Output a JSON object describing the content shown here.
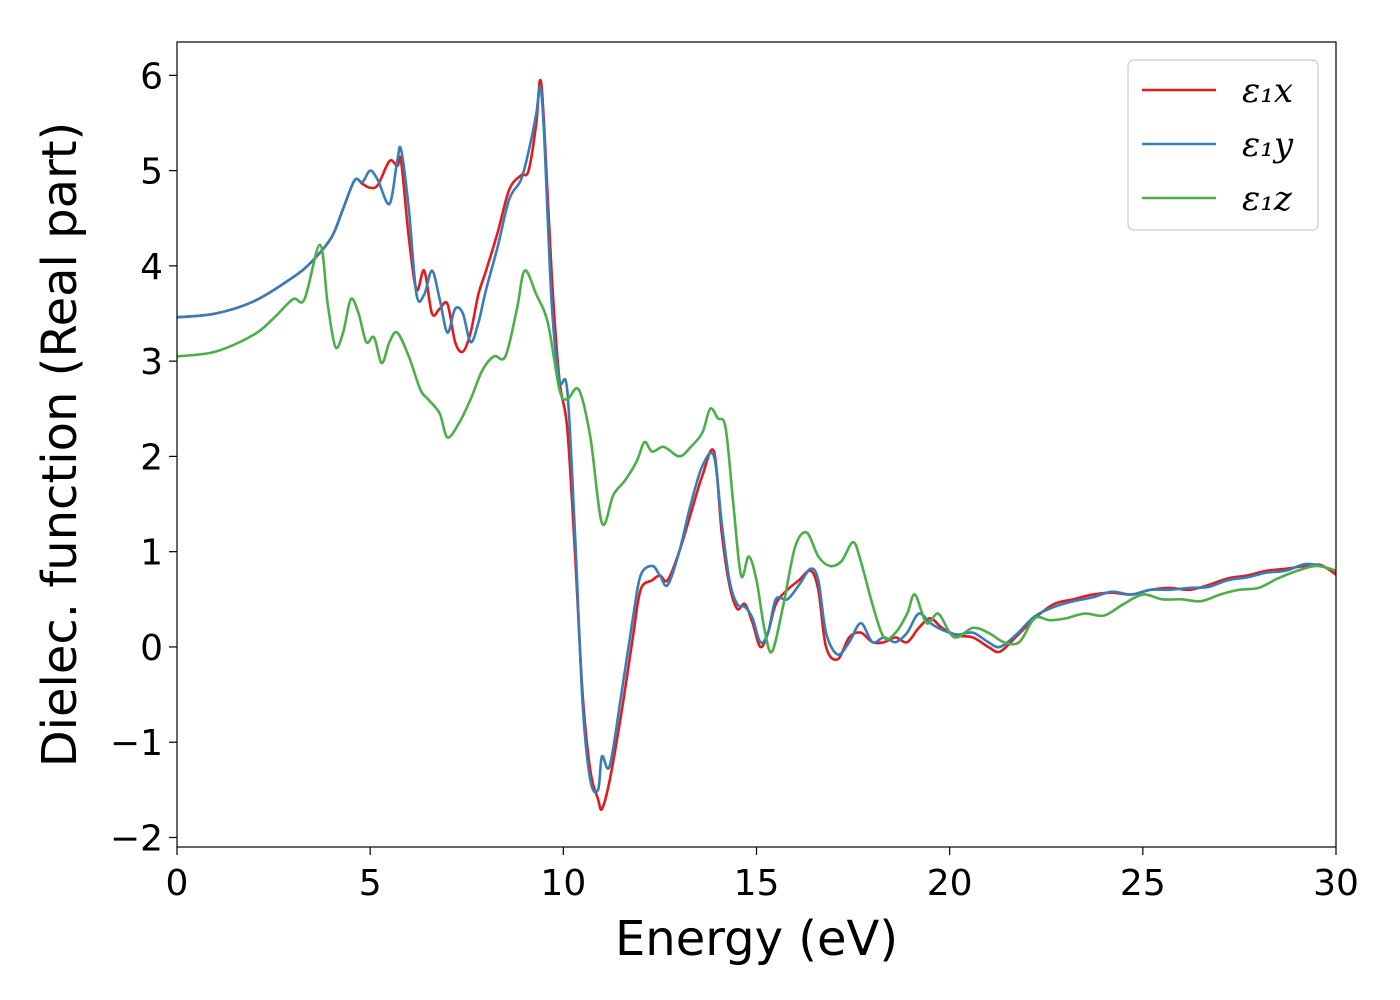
{
  "chart_data": {
    "type": "line",
    "title": "",
    "xlabel": "Energy (eV)",
    "ylabel": "Dielec. function (Real part)",
    "xlim": [
      0,
      30
    ],
    "ylim": [
      -2.1,
      6.35
    ],
    "xticks": [
      0,
      5,
      10,
      15,
      20,
      25,
      30
    ],
    "xtick_labels": [
      "0",
      "5",
      "10",
      "15",
      "20",
      "25",
      "30"
    ],
    "yticks": [
      -2,
      -1,
      0,
      1,
      2,
      3,
      4,
      5,
      6
    ],
    "ytick_labels": [
      "−2",
      "−1",
      "0",
      "1",
      "2",
      "3",
      "4",
      "5",
      "6"
    ],
    "grid": false,
    "legend_position": "top-right",
    "series": [
      {
        "name": "ε₁x",
        "color": "#e41a1c",
        "x": [
          0,
          1,
          2,
          3,
          3.5,
          4,
          4.3,
          4.6,
          4.8,
          5.0,
          5.2,
          5.5,
          5.7,
          5.8,
          6.0,
          6.2,
          6.4,
          6.6,
          6.8,
          7.0,
          7.2,
          7.4,
          7.6,
          7.8,
          8.0,
          8.3,
          8.6,
          8.9,
          9.1,
          9.3,
          9.4,
          9.5,
          9.7,
          9.9,
          10.1,
          10.3,
          10.5,
          10.7,
          10.9,
          11.0,
          11.2,
          11.5,
          11.8,
          12.0,
          12.3,
          12.5,
          12.7,
          13.0,
          13.3,
          13.6,
          13.9,
          14.1,
          14.3,
          14.5,
          14.7,
          14.9,
          15.1,
          15.3,
          15.5,
          15.8,
          16.1,
          16.4,
          16.6,
          16.8,
          17.1,
          17.4,
          17.7,
          18.0,
          18.3,
          18.6,
          18.9,
          19.2,
          19.5,
          19.8,
          20.2,
          20.6,
          21.0,
          21.3,
          21.7,
          22.2,
          22.7,
          23.2,
          23.7,
          24.2,
          24.7,
          25.2,
          25.7,
          26.2,
          26.7,
          27.2,
          27.7,
          28.2,
          28.7,
          29.2,
          29.6,
          30.0
        ],
        "y": [
          3.46,
          3.5,
          3.63,
          3.88,
          4.05,
          4.3,
          4.6,
          4.9,
          4.86,
          4.82,
          4.85,
          5.1,
          5.05,
          5.1,
          4.3,
          3.75,
          3.95,
          3.5,
          3.55,
          3.6,
          3.2,
          3.1,
          3.3,
          3.7,
          3.95,
          4.35,
          4.8,
          4.95,
          5.0,
          5.5,
          5.95,
          5.5,
          3.9,
          2.8,
          2.3,
          1.0,
          -0.5,
          -1.3,
          -1.6,
          -1.7,
          -1.4,
          -0.7,
          0.1,
          0.6,
          0.7,
          0.75,
          0.7,
          1.0,
          1.4,
          1.8,
          2.05,
          1.2,
          0.65,
          0.4,
          0.45,
          0.25,
          0.0,
          0.15,
          0.45,
          0.6,
          0.7,
          0.8,
          0.6,
          0.0,
          -0.13,
          0.1,
          0.15,
          0.05,
          0.05,
          0.1,
          0.05,
          0.2,
          0.3,
          0.2,
          0.12,
          0.1,
          0.0,
          -0.05,
          0.1,
          0.3,
          0.45,
          0.5,
          0.55,
          0.57,
          0.55,
          0.6,
          0.62,
          0.6,
          0.65,
          0.72,
          0.75,
          0.8,
          0.82,
          0.85,
          0.86,
          0.76
        ]
      },
      {
        "name": "ε₁y",
        "color": "#377eb8",
        "x": [
          0,
          1,
          2,
          3,
          3.5,
          4,
          4.3,
          4.6,
          4.8,
          5.0,
          5.2,
          5.5,
          5.7,
          5.8,
          6.0,
          6.2,
          6.4,
          6.6,
          6.8,
          7.0,
          7.2,
          7.4,
          7.6,
          7.8,
          8.0,
          8.3,
          8.6,
          8.9,
          9.1,
          9.3,
          9.4,
          9.5,
          9.7,
          9.9,
          10.1,
          10.3,
          10.5,
          10.7,
          10.9,
          11.0,
          11.2,
          11.5,
          11.8,
          12.0,
          12.3,
          12.5,
          12.7,
          13.0,
          13.3,
          13.6,
          13.9,
          14.1,
          14.3,
          14.5,
          14.7,
          14.9,
          15.1,
          15.3,
          15.5,
          15.8,
          16.1,
          16.4,
          16.6,
          16.8,
          17.1,
          17.4,
          17.7,
          18.0,
          18.3,
          18.6,
          18.9,
          19.2,
          19.5,
          19.8,
          20.2,
          20.6,
          21.0,
          21.3,
          21.7,
          22.2,
          22.7,
          23.2,
          23.7,
          24.2,
          24.7,
          25.2,
          25.7,
          26.2,
          26.7,
          27.2,
          27.7,
          28.2,
          28.7,
          29.2,
          29.6,
          30.0
        ],
        "y": [
          3.46,
          3.5,
          3.63,
          3.88,
          4.05,
          4.3,
          4.6,
          4.9,
          4.88,
          5.0,
          4.9,
          4.65,
          5.1,
          5.22,
          4.6,
          3.7,
          3.7,
          3.95,
          3.65,
          3.3,
          3.55,
          3.5,
          3.2,
          3.4,
          3.75,
          4.2,
          4.7,
          4.9,
          5.2,
          5.6,
          5.88,
          5.4,
          3.6,
          2.8,
          2.7,
          1.2,
          -0.6,
          -1.4,
          -1.5,
          -1.15,
          -1.25,
          -0.5,
          0.3,
          0.75,
          0.85,
          0.75,
          0.65,
          1.0,
          1.5,
          1.9,
          2.0,
          1.3,
          0.7,
          0.45,
          0.42,
          0.3,
          0.05,
          0.15,
          0.5,
          0.5,
          0.65,
          0.82,
          0.7,
          0.15,
          -0.08,
          0.05,
          0.25,
          0.05,
          0.1,
          0.05,
          0.15,
          0.35,
          0.25,
          0.18,
          0.13,
          0.15,
          0.05,
          0.0,
          0.12,
          0.32,
          0.42,
          0.48,
          0.52,
          0.58,
          0.55,
          0.6,
          0.6,
          0.62,
          0.63,
          0.7,
          0.73,
          0.78,
          0.8,
          0.87,
          0.85,
          0.8
        ]
      },
      {
        "name": "ε₁z",
        "color": "#4daf4a",
        "x": [
          0,
          1,
          2,
          2.5,
          3.0,
          3.3,
          3.7,
          3.9,
          4.1,
          4.3,
          4.5,
          4.7,
          4.9,
          5.1,
          5.3,
          5.5,
          5.7,
          6.0,
          6.3,
          6.5,
          6.8,
          7.0,
          7.3,
          7.6,
          7.9,
          8.2,
          8.5,
          8.8,
          9.0,
          9.3,
          9.6,
          9.9,
          10.1,
          10.4,
          10.7,
          11.0,
          11.3,
          11.6,
          11.9,
          12.1,
          12.3,
          12.6,
          13.0,
          13.3,
          13.6,
          13.8,
          14.0,
          14.2,
          14.4,
          14.6,
          14.8,
          15.0,
          15.2,
          15.4,
          15.7,
          16.0,
          16.3,
          16.6,
          16.9,
          17.2,
          17.5,
          17.7,
          18.0,
          18.3,
          18.6,
          18.9,
          19.1,
          19.4,
          19.7,
          20.0,
          20.2,
          20.6,
          21.0,
          21.4,
          21.8,
          22.2,
          22.6,
          23.0,
          23.5,
          24.0,
          24.5,
          25.0,
          25.5,
          26.0,
          26.5,
          27.0,
          27.5,
          28.0,
          28.5,
          29.0,
          29.5,
          30.0
        ],
        "y": [
          3.05,
          3.1,
          3.28,
          3.45,
          3.65,
          3.65,
          4.22,
          3.6,
          3.15,
          3.3,
          3.65,
          3.5,
          3.2,
          3.25,
          2.98,
          3.2,
          3.3,
          3.05,
          2.7,
          2.6,
          2.45,
          2.2,
          2.35,
          2.6,
          2.9,
          3.05,
          3.05,
          3.55,
          3.95,
          3.7,
          3.4,
          2.7,
          2.6,
          2.7,
          2.2,
          1.3,
          1.6,
          1.75,
          1.95,
          2.15,
          2.05,
          2.1,
          2.0,
          2.1,
          2.25,
          2.5,
          2.4,
          2.3,
          1.5,
          0.75,
          0.95,
          0.7,
          0.2,
          -0.05,
          0.45,
          1.05,
          1.2,
          0.95,
          0.85,
          0.9,
          1.1,
          0.9,
          0.45,
          0.1,
          0.15,
          0.35,
          0.55,
          0.25,
          0.35,
          0.15,
          0.1,
          0.2,
          0.15,
          0.05,
          0.05,
          0.3,
          0.28,
          0.3,
          0.35,
          0.33,
          0.45,
          0.55,
          0.5,
          0.5,
          0.48,
          0.55,
          0.6,
          0.62,
          0.72,
          0.8,
          0.85,
          0.8
        ]
      }
    ]
  }
}
